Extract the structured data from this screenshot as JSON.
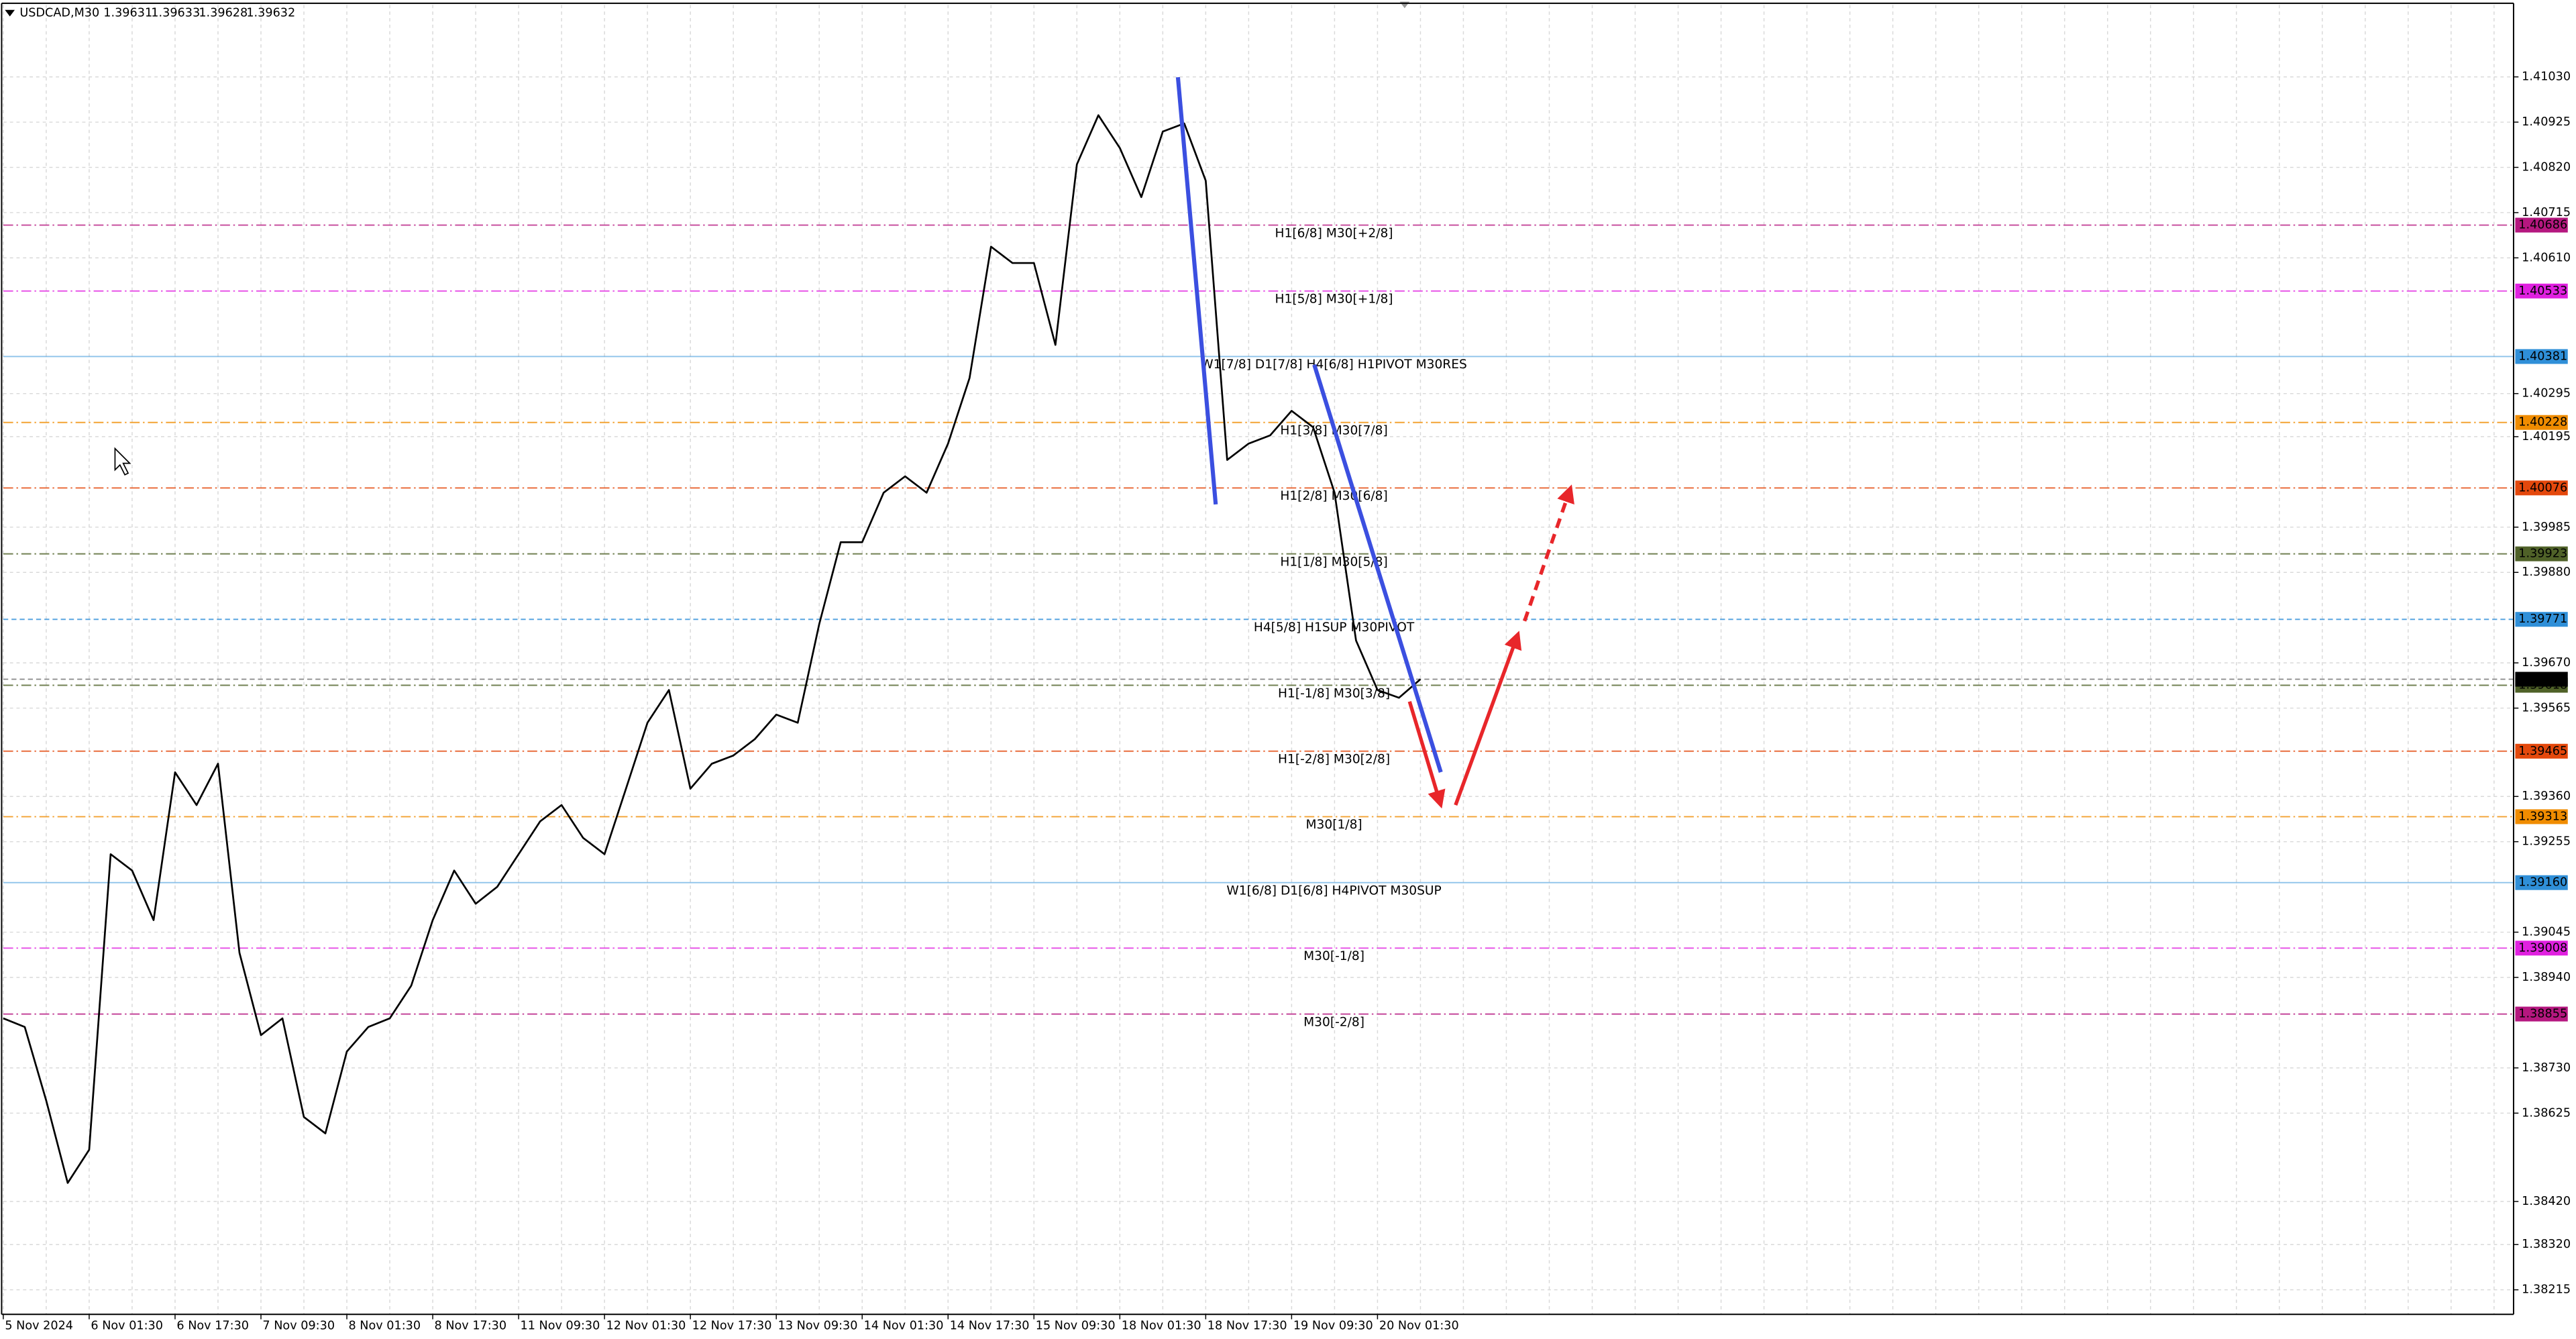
{
  "chart_data": {
    "type": "line",
    "title": "USDCAD,M30",
    "last_bar": {
      "open": 1.39631,
      "high": 1.39633,
      "low": 1.39628,
      "close": 1.39632
    },
    "categories": [
      "5 Nov 2024",
      null,
      null,
      null,
      "6 Nov 01:30",
      null,
      null,
      null,
      "6 Nov 17:30",
      null,
      null,
      null,
      "7 Nov 09:30",
      null,
      null,
      null,
      "8 Nov 01:30",
      null,
      null,
      null,
      "8 Nov 17:30",
      null,
      null,
      null,
      "11 Nov 09:30",
      null,
      null,
      null,
      "12 Nov 01:30",
      null,
      null,
      null,
      "12 Nov 17:30",
      null,
      null,
      null,
      "13 Nov 09:30",
      null,
      null,
      null,
      "14 Nov 01:30",
      null,
      null,
      null,
      "14 Nov 17:30",
      null,
      null,
      null,
      "15 Nov 09:30",
      null,
      null,
      null,
      "18 Nov 01:30",
      null,
      null,
      null,
      "18 Nov 17:30",
      null,
      null,
      null,
      "19 Nov 09:30",
      null,
      null,
      null,
      "20 Nov 01:30",
      null,
      null
    ],
    "series": [
      {
        "color": "#000000",
        "values": [
          1.38845,
          1.38825,
          1.38654,
          1.38463,
          1.3854,
          1.39226,
          1.39188,
          1.39073,
          1.39416,
          1.3934,
          1.39436,
          1.38997,
          1.38806,
          1.38845,
          1.38616,
          1.38578,
          1.38768,
          1.38825,
          1.38845,
          1.38921,
          1.39073,
          1.39188,
          1.39111,
          1.3915,
          1.39226,
          1.39302,
          1.3934,
          1.39264,
          1.39226,
          1.39378,
          1.39531,
          1.39607,
          1.39378,
          1.39436,
          1.39455,
          1.39493,
          1.3955,
          1.39531,
          1.3976,
          1.3995,
          1.3995,
          1.40065,
          1.40103,
          1.40065,
          1.40179,
          1.40331,
          1.40636,
          1.40598,
          1.40598,
          1.40408,
          1.40827,
          1.40941,
          1.40865,
          1.40751,
          1.40903,
          1.40922,
          1.40789,
          1.40141,
          1.40179,
          1.40198,
          1.40255,
          1.40217,
          1.40065,
          1.39722,
          1.39607,
          1.39589,
          1.39632
        ]
      }
    ],
    "ylim": [
      1.38158,
      1.41197
    ],
    "yticks": [
      {
        "value": 1.4103,
        "label": "1.41030"
      },
      1.40925,
      {
        "value": 1.4082,
        "label": "1.40820"
      },
      1.40715,
      {
        "value": 1.4061,
        "label": "1.40610"
      },
      1.40295,
      1.40195,
      1.39985,
      {
        "value": 1.3988,
        "label": "1.39880"
      },
      {
        "value": 1.3967,
        "label": "1.39670"
      },
      1.39565,
      {
        "value": 1.3936,
        "label": "1.39360"
      },
      1.39255,
      1.39045,
      {
        "value": 1.3894,
        "label": "1.38940"
      },
      {
        "value": 1.3873,
        "label": "1.38730"
      },
      1.38625,
      {
        "value": 1.3842,
        "label": "1.38420"
      },
      {
        "value": 1.3832,
        "label": "1.38320"
      },
      1.38215
    ],
    "grid": true,
    "current_price": 1.39632,
    "levels": [
      {
        "label": "H1[6/8] M30[+2/8]",
        "value": 1.40686,
        "color": "#b5177f",
        "style": "dashdot"
      },
      {
        "label": "H1[5/8] M30[+1/8]",
        "value": 1.40533,
        "color": "#e020e0",
        "style": "dashdot"
      },
      {
        "label": "W1[7/8] D1[7/8] H4[6/8] H1PIVOT M30RES",
        "value": 1.40381,
        "color": "#2f8fd8",
        "style": "solid"
      },
      {
        "label": "H1[3/8] M30[7/8]",
        "value": 1.40228,
        "color": "#f08c00",
        "style": "dashdot"
      },
      {
        "label": "H1[2/8] M30[6/8]",
        "value": 1.40076,
        "color": "#e4480c",
        "style": "dashdot"
      },
      {
        "label": "H1[1/8] M30[5/8]",
        "value": 1.39923,
        "color": "#4f6128",
        "style": "dashdot"
      },
      {
        "label": "H4[5/8] H1SUP M30PIVOT",
        "value": 1.39771,
        "color": "#2f8fd8",
        "style": "dashed"
      },
      {
        "label": "H1[-1/8] M30[3/8]",
        "value": 1.39618,
        "color": "#4f6128",
        "style": "dashdot"
      },
      {
        "label": "H1[-2/8] M30[2/8]",
        "value": 1.39465,
        "color": "#e4480c",
        "style": "dashdot"
      },
      {
        "label": "M30[1/8]",
        "value": 1.39313,
        "color": "#f08c00",
        "style": "dashdot"
      },
      {
        "label": "W1[6/8] D1[6/8] H4PIVOT M30SUP",
        "value": 1.3916,
        "value_label": "1.39160",
        "color": "#2f8fd8",
        "style": "solid"
      },
      {
        "label": "M30[-1/8]",
        "value": 1.39008,
        "color": "#e020e0",
        "style": "dashdot"
      },
      {
        "label": "M30[-2/8]",
        "value": 1.38855,
        "color": "#b5177f",
        "style": "dashdot"
      }
    ]
  }
}
